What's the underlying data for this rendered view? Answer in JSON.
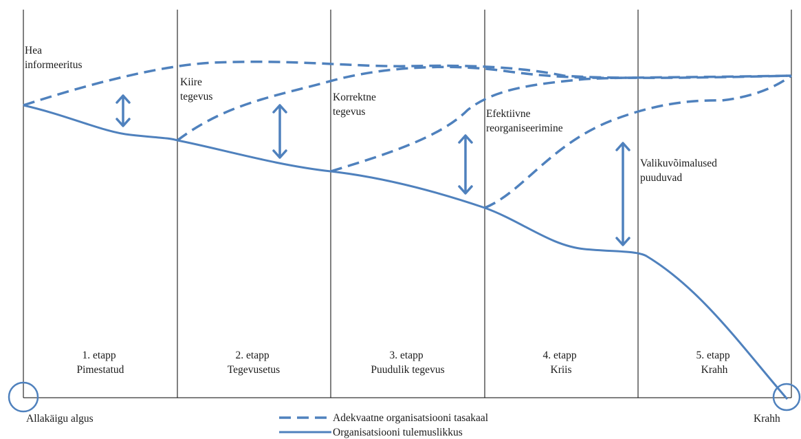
{
  "stages": [
    {
      "number": "1. etapp",
      "name": "Pimestatud"
    },
    {
      "number": "2. etapp",
      "name": "Tegevusetus"
    },
    {
      "number": "3. etapp",
      "name": "Puudulik tegevus"
    },
    {
      "number": "4. etapp",
      "name": "Kriis"
    },
    {
      "number": "5. etapp",
      "name": "Krahh"
    }
  ],
  "annotations": {
    "hea": [
      "Hea",
      "informeeritus"
    ],
    "kiire": [
      "Kiire",
      "tegevus"
    ],
    "korrektne": [
      "Korrektne",
      "tegevus"
    ],
    "efektiivne": [
      "Efektiivne",
      "reorganiseerimine"
    ],
    "valiku": [
      "Valikuvõimalused",
      "puuduvad"
    ]
  },
  "start_label": "Allakäigu algus",
  "end_label": "Krahh",
  "legend": {
    "dashed": "Adekvaatne organisatsiooni tasakaal",
    "solid": "Organisatsiooni tulemuslikkus"
  },
  "colors": {
    "line": "#4f81bd",
    "axis": "#000000"
  }
}
